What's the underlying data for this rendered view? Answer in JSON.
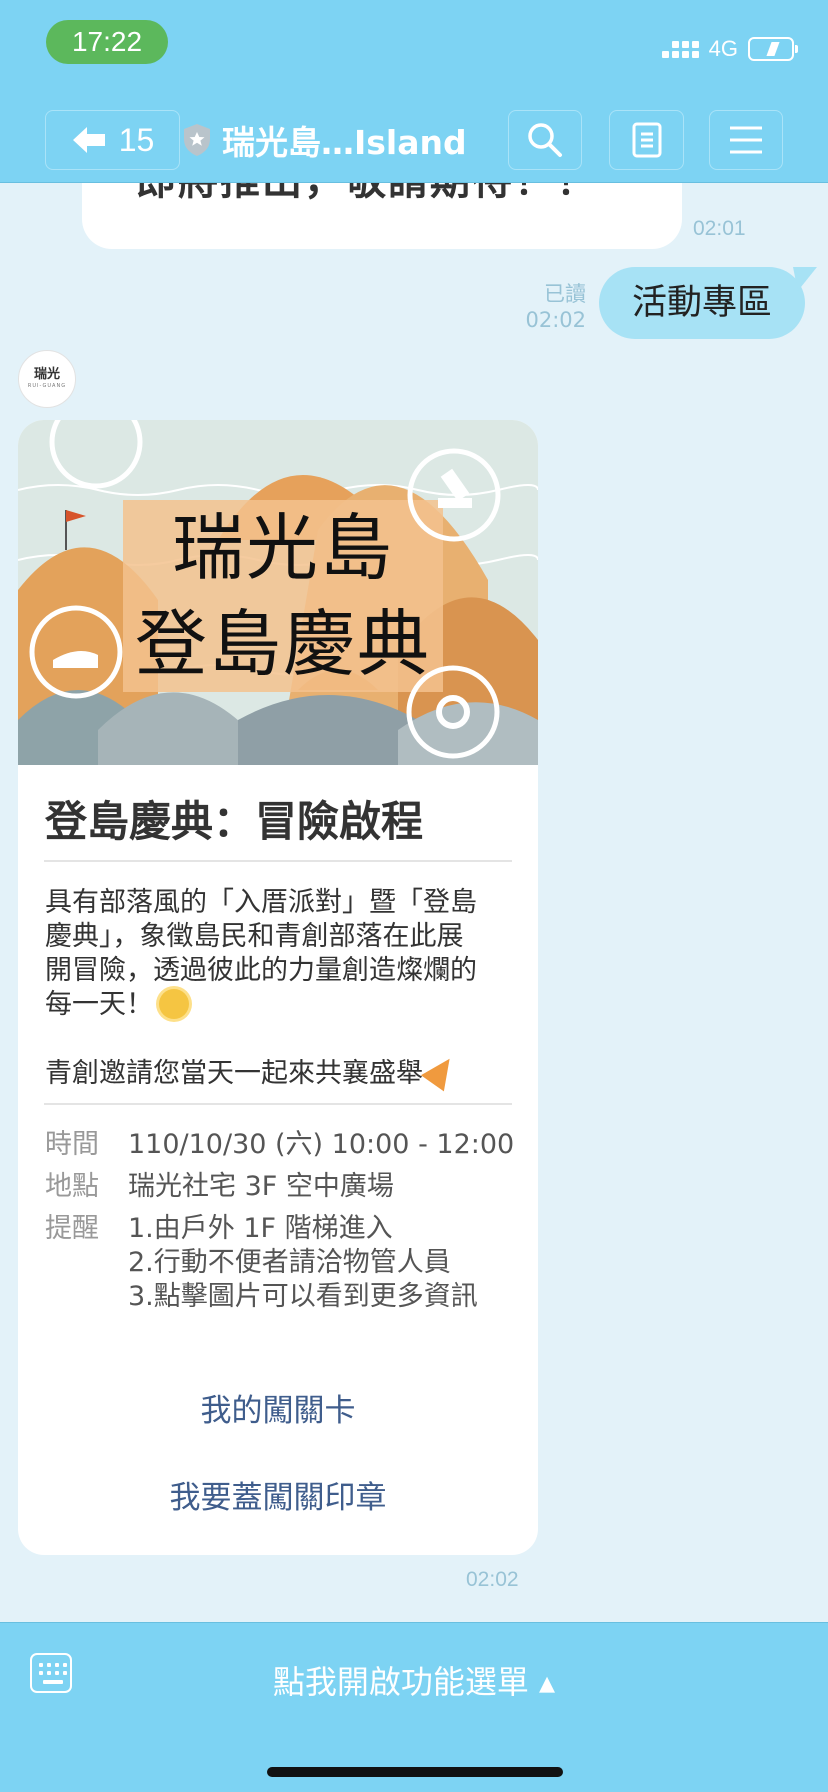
{
  "status_bar": {
    "time": "17:22",
    "network": "4G"
  },
  "header": {
    "back_count": "15",
    "title": "瑞光島…Island"
  },
  "chat": {
    "prev_message_partial": "即將推出，敬請期待！！",
    "prev_message_time": "02:01",
    "read_label": "已讀",
    "my_message_time": "02:02",
    "my_message": "活動專區",
    "avatar_text": "瑞光",
    "avatar_sub": "RUI-GUANG",
    "card": {
      "image_title_line1": "瑞光島",
      "image_title_line2": "登島慶典",
      "title": "登島慶典：冒險啟程",
      "desc_line1": "具有部落風的「入厝派對」暨「登島",
      "desc_line2": "慶典」，象徵島民和青創部落在此展",
      "desc_line3": "開冒險，透過彼此的力量創造燦爛的",
      "desc_line4": "每一天！",
      "desc_line5": "青創邀請您當天一起來共襄盛舉",
      "time_label": "時間",
      "time_value": "110/10/30 (六) 10:00 - 12:00",
      "place_label": "地點",
      "place_value": "瑞光社宅 3F 空中廣場",
      "remind_label": "提醒",
      "remind_1": "1.由戶外 1F 階梯進入",
      "remind_2": "2.行動不便者請洽物管人員",
      "remind_3": "3.點擊圖片可以看到更多資訊",
      "link_1": "我的闖關卡",
      "link_2": "我要蓋闖關印章"
    },
    "card_time": "02:02"
  },
  "bottom": {
    "menu_label": "點我開啟功能選單 ▴"
  },
  "colors": {
    "header_bg": "#7dd3f3",
    "chat_bg": "#e3f2f9",
    "my_bubble": "#a7e2f5",
    "link": "#3f5d8c"
  },
  "icons": [
    "back-arrow-icon",
    "shield-icon",
    "search-icon",
    "note-icon",
    "menu-icon",
    "keyboard-icon",
    "signal-icon",
    "battery-icon"
  ]
}
